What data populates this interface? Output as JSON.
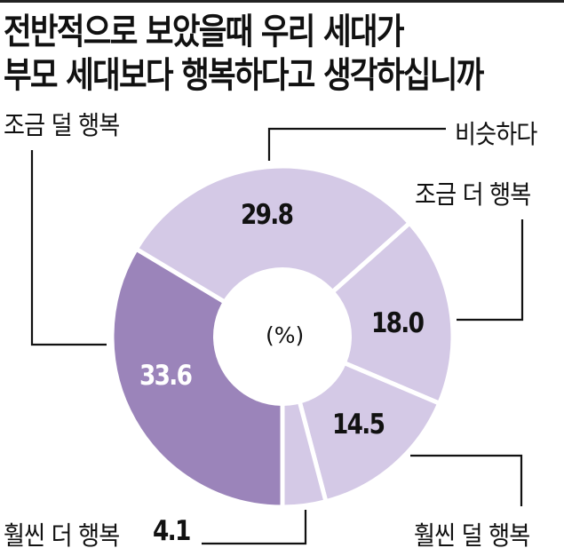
{
  "title": {
    "line1": "전반적으로 보았을때 우리 세대가",
    "line2": "부모 세대보다 행복하다고 생각하십니까"
  },
  "unit_label": "(%)",
  "colors": {
    "dark": "#9B84BA",
    "light": "#D4C9E6",
    "gap": "#ffffff",
    "leader": "#111111"
  },
  "labels": {
    "less_somewhat": "조금 덜 행복",
    "similar": "비슷하다",
    "more_somewhat": "조금 더 행복",
    "less_much": "훨씬 덜 행복",
    "more_much": "훨씬 더 행복"
  },
  "values": {
    "less_somewhat": "33.6",
    "similar": "29.8",
    "more_somewhat": "18.0",
    "less_much": "14.5",
    "more_much": "4.1"
  },
  "chart_data": {
    "type": "pie",
    "variant": "donut",
    "title": "전반적으로 보았을때 우리 세대가 부모 세대보다 행복하다고 생각하십니까",
    "unit": "%",
    "categories": [
      "조금 덜 행복",
      "비슷하다",
      "조금 더 행복",
      "훨씬 덜 행복",
      "훨씬 더 행복"
    ],
    "values": [
      33.6,
      29.8,
      18.0,
      14.5,
      4.1
    ],
    "slice_colors": [
      "#9B84BA",
      "#D4C9E6",
      "#D4C9E6",
      "#D4C9E6",
      "#D4C9E6"
    ],
    "start_angle_deg_clockwise_from_top": 180,
    "direction": "clockwise",
    "legend": "none (direct leader-line labels)"
  }
}
